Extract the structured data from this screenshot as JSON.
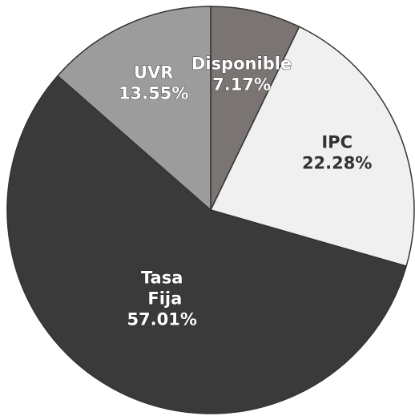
{
  "chart_data": {
    "type": "pie",
    "categories": [
      "Disponible",
      "IPC",
      "Tasa Fija",
      "UVR"
    ],
    "values": [
      7.17,
      22.28,
      57.01,
      13.55
    ],
    "value_labels": [
      "7.17%",
      "22.28%",
      "57.01%",
      "13.55%"
    ],
    "colors": [
      "#7a7472",
      "#f0f0f0",
      "#3a3a3a",
      "#9c9c9c"
    ]
  }
}
